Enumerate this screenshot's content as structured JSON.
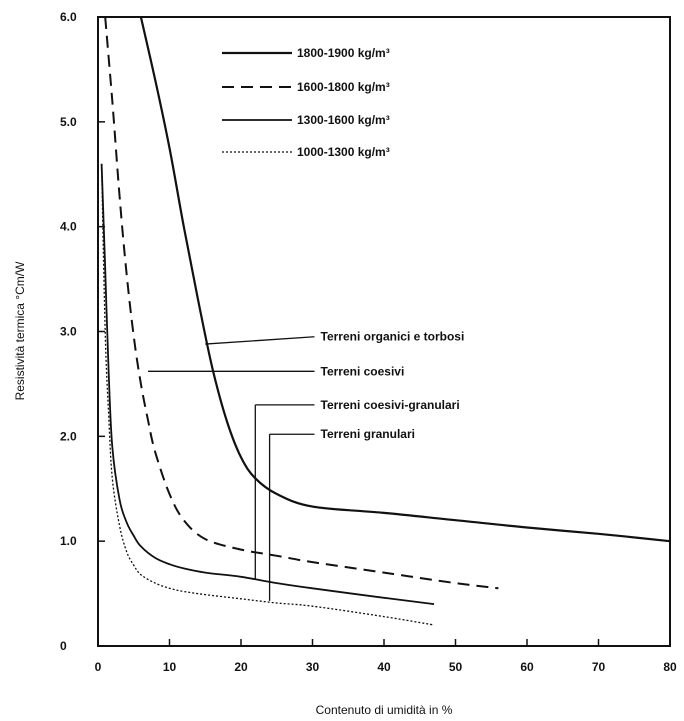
{
  "chart_data": {
    "type": "line",
    "xlabel": "Contenuto di umidità in %",
    "ylabel": "Resistività termica °Cm/W",
    "xlim": [
      0,
      80
    ],
    "ylim": [
      0,
      6.0
    ],
    "x_ticks": [
      "0",
      "10",
      "20",
      "30",
      "40",
      "50",
      "60",
      "70",
      "80"
    ],
    "y_ticks": [
      {
        "value": 0,
        "label": "0"
      },
      {
        "value": 1.0,
        "label": "1.0"
      },
      {
        "value": 2.0,
        "label": "2.0"
      },
      {
        "value": 3.0,
        "label": "3.0"
      },
      {
        "value": 4.0,
        "label": "4.0"
      },
      {
        "value": 5.0,
        "label": "5.0"
      },
      {
        "value": 6.0,
        "label": "6.0"
      }
    ],
    "grid": false,
    "legend_position": "top",
    "series": [
      {
        "name": "1800-1900 kg/m³",
        "style": "solid-heavy",
        "x": [
          6,
          8,
          10,
          12,
          14,
          16,
          18,
          20,
          22,
          25,
          30,
          40,
          50,
          60,
          70,
          80
        ],
        "y": [
          6.0,
          5.4,
          4.75,
          4.0,
          3.3,
          2.65,
          2.15,
          1.8,
          1.6,
          1.45,
          1.33,
          1.27,
          1.2,
          1.13,
          1.07,
          1.0
        ]
      },
      {
        "name": "1600-1800 kg/m³",
        "style": "dashed",
        "x": [
          1,
          2,
          3,
          4,
          5,
          6,
          7,
          8,
          10,
          12,
          15,
          20,
          25,
          30,
          40,
          50,
          56
        ],
        "y": [
          6.0,
          5.2,
          4.3,
          3.55,
          2.95,
          2.5,
          2.15,
          1.85,
          1.45,
          1.2,
          1.02,
          0.92,
          0.86,
          0.8,
          0.7,
          0.6,
          0.55
        ]
      },
      {
        "name": "1300-1600 kg/m³",
        "style": "solid",
        "x": [
          0.5,
          1,
          1.5,
          2,
          3,
          4,
          5,
          6,
          8,
          10,
          12,
          15,
          20,
          25,
          30,
          40,
          47
        ],
        "y": [
          4.6,
          3.6,
          2.6,
          1.9,
          1.4,
          1.18,
          1.05,
          0.95,
          0.84,
          0.78,
          0.74,
          0.7,
          0.66,
          0.6,
          0.55,
          0.46,
          0.4
        ]
      },
      {
        "name": "1000-1300 kg/m³",
        "style": "dotted",
        "x": [
          0.5,
          1,
          1.5,
          2,
          3,
          4,
          5,
          6,
          8,
          10,
          12,
          15,
          20,
          25,
          30,
          40,
          47
        ],
        "y": [
          4.6,
          3.0,
          2.2,
          1.6,
          1.15,
          0.9,
          0.77,
          0.68,
          0.6,
          0.55,
          0.52,
          0.49,
          0.45,
          0.41,
          0.38,
          0.28,
          0.2
        ]
      }
    ],
    "annotations": [
      {
        "text": "Terreni organici e torbosi",
        "label_x": 30,
        "label_y": 2.95,
        "x": 15,
        "y": 2.88
      },
      {
        "text": "Terreni coesivi",
        "label_x": 30,
        "label_y": 2.62,
        "x": 7,
        "y": 2.62
      },
      {
        "text": "Terreni coesivi-granulari",
        "label_x": 30,
        "label_y": 2.3,
        "x": 22,
        "y": 2.3,
        "foot_y": 0.64
      },
      {
        "text": "Terreni granulari",
        "label_x": 30,
        "label_y": 2.02,
        "x": 24,
        "y": 2.02,
        "foot_y": 0.43
      }
    ]
  }
}
